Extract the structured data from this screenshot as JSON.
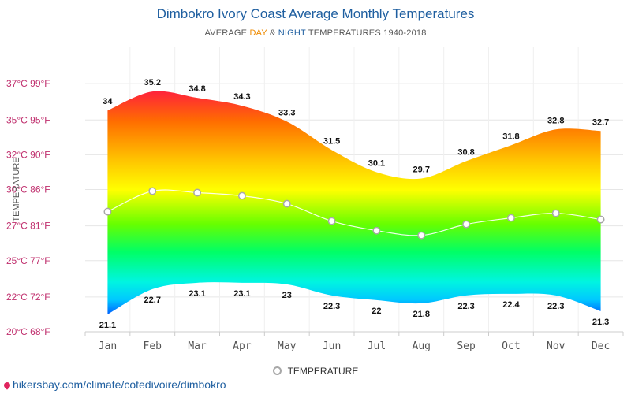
{
  "title": "Dimbokro Ivory Coast Average Monthly Temperatures",
  "subtitle": {
    "prefix": "AVERAGE ",
    "day": "DAY",
    "amp": " & ",
    "night": "NIGHT",
    "suffix": " TEMPERATURES 1940-2018"
  },
  "legend": {
    "label": "TEMPERATURE"
  },
  "source": {
    "text": "hikersbay.com/climate/cotedivoire/dimbokro"
  },
  "colors": {
    "title": "#1f5fa0",
    "day": "#ee8a00",
    "night": "#1f5fa0",
    "y_tick": "#c0306e",
    "line": "#ffffff",
    "marker_stroke": "#a8a8a8"
  },
  "chart_data": {
    "type": "area",
    "categories": [
      "Jan",
      "Feb",
      "Mar",
      "Apr",
      "May",
      "Jun",
      "Jul",
      "Aug",
      "Sep",
      "Oct",
      "Nov",
      "Dec"
    ],
    "series": [
      {
        "values": [
          34,
          35.2,
          34.8,
          34.3,
          33.3,
          31.5,
          30.1,
          29.7,
          30.8,
          31.8,
          32.8,
          32.7
        ]
      },
      {
        "values": [
          21.1,
          22.7,
          23.1,
          23.1,
          23,
          22.3,
          22,
          21.8,
          22.3,
          22.4,
          22.3,
          21.3
        ]
      },
      {
        "name": "TEMPERATURE",
        "values": [
          27.6,
          28.9,
          28.8,
          28.6,
          28.1,
          27,
          26.4,
          26.1,
          26.8,
          27.2,
          27.5,
          27.1
        ]
      }
    ],
    "ylabel": "TEMPERATURE",
    "ylim": [
      20,
      38
    ],
    "y_ticks": [
      {
        "value": 20,
        "label": "20°C 68°F"
      },
      {
        "value": 22.2,
        "label": "22°C 72°F"
      },
      {
        "value": 24.5,
        "label": "25°C 77°F"
      },
      {
        "value": 26.7,
        "label": "27°C 81°F"
      },
      {
        "value": 29,
        "label": "30°C 86°F"
      },
      {
        "value": 31.2,
        "label": "32°C 90°F"
      },
      {
        "value": 33.4,
        "label": "35°C 95°F"
      },
      {
        "value": 35.7,
        "label": "37°C 99°F"
      }
    ],
    "grid": true,
    "legend_position": "bottom"
  }
}
